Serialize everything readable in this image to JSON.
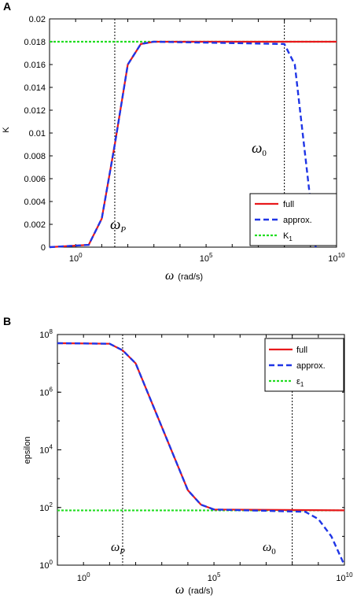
{
  "colors": {
    "full": "#e8191c",
    "approx": "#1f35e6",
    "const": "#22dd22",
    "marker": "#000000"
  },
  "chart_data": [
    {
      "type": "line",
      "panel_label": "A",
      "xscale": "log",
      "xlim_exp": [
        -1,
        10
      ],
      "xticks": [
        {
          "base": "10",
          "exp": "0"
        },
        {
          "base": "10",
          "exp": "5"
        },
        {
          "base": "10",
          "exp": "10"
        }
      ],
      "xlabel": "(rad/s)",
      "xlabel_symbol": "ω",
      "ylabel": "K",
      "ylim": [
        0,
        0.02
      ],
      "yticks": [
        "0",
        "0.002",
        "0.004",
        "0.006",
        "0.008",
        "0.01",
        "0.012",
        "0.014",
        "0.016",
        "0.018",
        "0.02"
      ],
      "grid": false,
      "legend_position": "bottom-right",
      "plateau": 0.018,
      "omega_p_exp": 1.5,
      "omega_0_exp": 8,
      "markers": [
        {
          "symbol": "ω",
          "subscript": "P",
          "x_exp": 1.5
        },
        {
          "symbol": "ω",
          "subscript": "0",
          "x_exp": 8
        }
      ],
      "series": [
        {
          "name": "full",
          "x_exp": [
            -1,
            0.5,
            1.0,
            1.5,
            2.0,
            2.5,
            3.0,
            10
          ],
          "y": [
            0,
            0.0002,
            0.0025,
            0.009,
            0.016,
            0.0178,
            0.018,
            0.018
          ]
        },
        {
          "name": "approx.",
          "x_exp": [
            -1,
            0.5,
            1.0,
            1.5,
            2.0,
            2.5,
            3.0,
            8.0,
            8.4,
            8.8,
            9.2
          ],
          "y": [
            0,
            0.0002,
            0.0025,
            0.009,
            0.016,
            0.0178,
            0.018,
            0.0178,
            0.016,
            0.008,
            0.0
          ]
        },
        {
          "name": "K",
          "subscript": "1",
          "constant": 0.018
        }
      ]
    },
    {
      "type": "line",
      "panel_label": "B",
      "xscale": "log",
      "yscale": "log",
      "xlim_exp": [
        -1,
        10
      ],
      "ylim_exp": [
        0,
        8
      ],
      "xticks": [
        {
          "base": "10",
          "exp": "0"
        },
        {
          "base": "10",
          "exp": "5"
        },
        {
          "base": "10",
          "exp": "10"
        }
      ],
      "yticks": [
        {
          "base": "10",
          "exp": "0"
        },
        {
          "base": "10",
          "exp": "2"
        },
        {
          "base": "10",
          "exp": "4"
        },
        {
          "base": "10",
          "exp": "6"
        },
        {
          "base": "10",
          "exp": "8"
        }
      ],
      "xlabel": "(rad/s)",
      "xlabel_symbol": "ω",
      "ylabel": "epsilon",
      "grid": false,
      "legend_position": "top-right",
      "plateau_high_exp": 7.7,
      "plateau_low_exp": 1.9,
      "omega_p_exp": 1.5,
      "omega_0_exp": 8,
      "markers": [
        {
          "symbol": "ω",
          "subscript": "P",
          "x_exp": 1.5
        },
        {
          "symbol": "ω",
          "subscript": "0",
          "x_exp": 8
        }
      ],
      "series": [
        {
          "name": "full",
          "x_exp": [
            -1,
            1.0,
            1.5,
            2.0,
            4.0,
            4.5,
            5.0,
            10
          ],
          "y_exp": [
            7.7,
            7.68,
            7.45,
            7.0,
            2.6,
            2.1,
            1.93,
            1.9
          ]
        },
        {
          "name": "approx.",
          "x_exp": [
            -1,
            1.0,
            1.5,
            2.0,
            4.0,
            4.5,
            5.0,
            8.5,
            9.0,
            9.5,
            10
          ],
          "y_exp": [
            7.7,
            7.68,
            7.45,
            7.0,
            2.6,
            2.1,
            1.93,
            1.85,
            1.6,
            1.0,
            0.0
          ]
        },
        {
          "name": "ε",
          "subscript": "1",
          "constant_exp": 1.9
        }
      ]
    }
  ]
}
